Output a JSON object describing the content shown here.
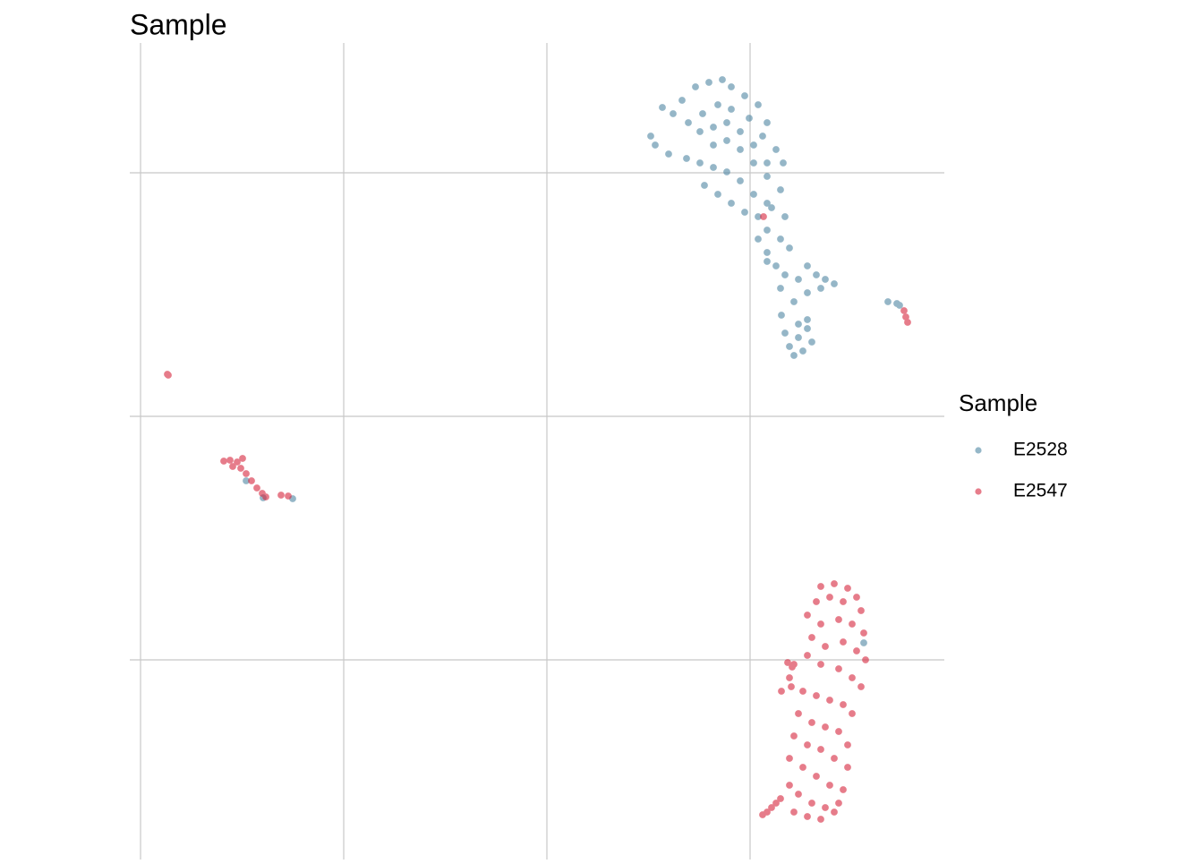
{
  "chart_data": {
    "type": "scatter",
    "title": "Sample",
    "legend_title": "Sample",
    "legend": "right",
    "grid": true,
    "point_opacity": 0.6,
    "xlim": [
      -12,
      898
    ],
    "ylim": [
      -223,
      689
    ],
    "xticks": [
      0,
      227,
      454,
      681
    ],
    "yticks": [
      0,
      272,
      544
    ],
    "series": [
      {
        "name": "E2528",
        "color": "#4f87a3",
        "x": [
          583,
          595,
          605,
          620,
          635,
          650,
          660,
          675,
          690,
          700,
          612,
          628,
          645,
          660,
          680,
          695,
          710,
          718,
          625,
          640,
          655,
          670,
          685,
          700,
          640,
          655,
          670,
          685,
          700,
          715,
          575,
          590,
          570,
          610,
          625,
          640,
          655,
          670,
          685,
          700,
          630,
          645,
          660,
          675,
          690,
          705,
          720,
          700,
          715,
          725,
          690,
          700,
          710,
          720,
          735,
          745,
          755,
          765,
          775,
          700,
          715,
          730,
          745,
          760,
          725,
          735,
          745,
          740,
          750,
          730,
          745,
          735,
          720,
          716,
          835,
          845,
          848,
          118,
          137,
          170,
          808
        ],
        "y": [
          617,
          610,
          625,
          640,
          645,
          648,
          640,
          630,
          620,
          600,
          600,
          610,
          620,
          615,
          605,
          585,
          570,
          555,
          590,
          595,
          600,
          590,
          575,
          555,
          575,
          580,
          570,
          555,
          540,
          525,
          575,
          565,
          585,
          560,
          555,
          550,
          545,
          535,
          520,
          510,
          530,
          520,
          510,
          500,
          495,
          505,
          495,
          480,
          470,
          460,
          470,
          455,
          440,
          430,
          425,
          440,
          430,
          425,
          420,
          445,
          415,
          400,
          410,
          415,
          350,
          360,
          370,
          345,
          355,
          340,
          380,
          375,
          365,
          385,
          400,
          398,
          396,
          200,
          181,
          180,
          19
        ]
      },
      {
        "name": "E2547",
        "color": "#d7263d",
        "x": [
          30,
          31,
          93,
          100,
          108,
          112,
          118,
          124,
          130,
          136,
          140,
          114,
          103,
          157,
          165,
          853,
          855,
          857,
          696,
          760,
          775,
          790,
          800,
          805,
          770,
          785,
          755,
          745,
          760,
          780,
          795,
          808,
          750,
          765,
          785,
          800,
          810,
          745,
          760,
          780,
          795,
          805,
          730,
          725,
          740,
          755,
          770,
          785,
          795,
          735,
          750,
          765,
          780,
          790,
          730,
          745,
          760,
          775,
          790,
          725,
          740,
          755,
          770,
          785,
          725,
          735,
          750,
          765,
          780,
          730,
          745,
          760,
          775,
          723,
          728,
          727,
          716,
          695,
          705,
          715,
          700,
          710
        ],
        "y": [
          319,
          318,
          222,
          223,
          221,
          214,
          208,
          200,
          192,
          186,
          182,
          225,
          216,
          184,
          183,
          390,
          383,
          377,
          495,
          82,
          85,
          80,
          70,
          55,
          70,
          65,
          65,
          50,
          40,
          45,
          40,
          30,
          25,
          15,
          20,
          10,
          0,
          5,
          -5,
          -10,
          -20,
          -30,
          -5,
          -20,
          -35,
          -40,
          -45,
          -50,
          -60,
          -60,
          -70,
          -75,
          -80,
          -95,
          -85,
          -95,
          -100,
          -110,
          -120,
          -110,
          -120,
          -130,
          -140,
          -145,
          -140,
          -150,
          -160,
          -165,
          -160,
          -170,
          -175,
          -178,
          -170,
          -3,
          -8,
          -30,
          -35,
          -173,
          -165,
          -155,
          -170,
          -160
        ]
      }
    ]
  }
}
